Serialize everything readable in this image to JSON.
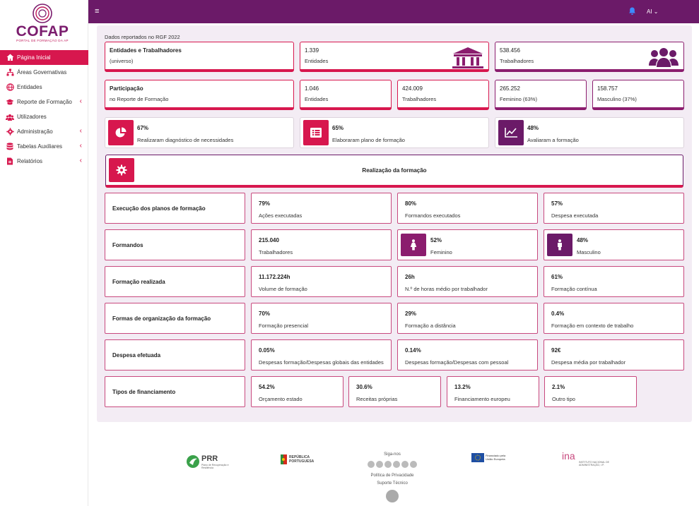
{
  "brand": {
    "name": "COFAP",
    "subtitle": "PORTAL DE FORMAÇÃO DA AP"
  },
  "sidebar": {
    "items": [
      {
        "label": "Página Inicial",
        "icon": "home-icon",
        "active": true,
        "chevron": false
      },
      {
        "label": "Áreas Governativas",
        "icon": "sitemap-icon",
        "chevron": false
      },
      {
        "label": "Entidades",
        "icon": "globe-icon",
        "chevron": false
      },
      {
        "label": "Reporte de Formação",
        "icon": "graduation-cap-icon",
        "chevron": true
      },
      {
        "label": "Utilizadores",
        "icon": "users-icon",
        "chevron": false
      },
      {
        "label": "Administração",
        "icon": "gear-icon",
        "chevron": true
      },
      {
        "label": "Tabelas Auxiliares",
        "icon": "database-icon",
        "chevron": true
      },
      {
        "label": "Relatórios",
        "icon": "file-pdf-icon",
        "chevron": true
      }
    ]
  },
  "topbar": {
    "menu_icon": "≡",
    "user": "AI ⌄"
  },
  "panel": {
    "title": "Dados reportados no RGF 2022",
    "row1": {
      "label": "Entidades e Trabalhadores",
      "sublabel": "(universo)",
      "entities_value": "1.339",
      "entities_label": "Entidades",
      "workers_value": "538.456",
      "workers_label": "Trabalhadores"
    },
    "row2": {
      "label": "Participação",
      "sublabel": "no Reporte de Formação",
      "cards": [
        {
          "value": "1.046",
          "label": "Entidades"
        },
        {
          "value": "424.009",
          "label": "Trabalhadores"
        },
        {
          "value": "265.252",
          "label": "Feminino (63%)"
        },
        {
          "value": "158.757",
          "label": "Masculino (37%)"
        }
      ]
    },
    "row3": [
      {
        "value": "67%",
        "label": "Realizaram diagnóstico de necessidades",
        "icon": "pie-chart-icon"
      },
      {
        "value": "65%",
        "label": "Elaboraram plano de formação",
        "icon": "list-icon"
      },
      {
        "value": "48%",
        "label": "Avaliaram a formação",
        "icon": "line-chart-icon"
      }
    ],
    "realizacao": "Realização da formação",
    "sections": [
      {
        "label": "Execução dos planos de formação",
        "cells": [
          {
            "v": "79%",
            "l": "Ações executadas"
          },
          {
            "v": "80%",
            "l": "Formandos executados"
          },
          {
            "v": "57%",
            "l": "Despesa executada"
          }
        ]
      },
      {
        "label": "Formandos",
        "cells": [
          {
            "v": "215.040",
            "l": "Trabalhadores"
          },
          {
            "v": "52%",
            "l": "Feminino"
          },
          {
            "v": "48%",
            "l": "Masculino"
          }
        ]
      },
      {
        "label": "Formação realizada",
        "cells": [
          {
            "v": "11.172.224h",
            "l": "Volume de formação"
          },
          {
            "v": "26h",
            "l": "N.º de horas médio por trabalhador"
          },
          {
            "v": "61%",
            "l": "Formação contínua"
          }
        ]
      },
      {
        "label": "Formas de organização da formação",
        "cells": [
          {
            "v": "70%",
            "l": "Formação presencial"
          },
          {
            "v": "29%",
            "l": "Formação a distância"
          },
          {
            "v": "0.4%",
            "l": "Formação em contexto de trabalho"
          }
        ]
      },
      {
        "label": "Despesa efetuada",
        "cells": [
          {
            "v": "0.05%",
            "l": "Despesas formação/Despesas globais das entidades"
          },
          {
            "v": "0.14%",
            "l": "Despesas formação/Despesas com pessoal"
          },
          {
            "v": "92€",
            "l": "Despesa média por trabalhador"
          }
        ]
      },
      {
        "label": "Tipos de financiamento",
        "cells": [
          {
            "v": "54.2%",
            "l": "Orçamento estado"
          },
          {
            "v": "30.6%",
            "l": "Receitas próprias"
          },
          {
            "v": "13.2%",
            "l": "Financiamento europeu"
          },
          {
            "v": "2.1%",
            "l": "Outro tipo"
          }
        ]
      }
    ]
  },
  "footer": {
    "prr": "PRR",
    "prr_sub": "Plano de Recuperação e Resiliência",
    "republica": "REPÚBLICA PORTUGUESA",
    "follow": "Siga-nos",
    "privacy": "Política de Privacidade",
    "support": "Suporte Técnico",
    "eu": "Financiado pela União Europeia",
    "ina": "ina",
    "ina_sub": "INSTITUTO NACIONAL DE ADMINISTRAÇÃO, I.P."
  }
}
